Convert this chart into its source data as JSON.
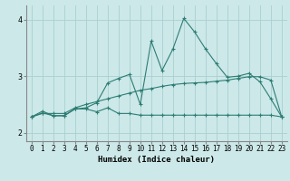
{
  "x": [
    0,
    1,
    2,
    3,
    4,
    5,
    6,
    7,
    8,
    9,
    10,
    11,
    12,
    13,
    14,
    15,
    16,
    17,
    18,
    19,
    20,
    21,
    22,
    23
  ],
  "line1": [
    2.28,
    2.35,
    2.3,
    2.3,
    2.42,
    2.42,
    2.37,
    2.44,
    2.34,
    2.34,
    2.31,
    2.31,
    2.31,
    2.31,
    2.31,
    2.31,
    2.31,
    2.31,
    2.31,
    2.31,
    2.31,
    2.31,
    2.31,
    2.28
  ],
  "line2": [
    2.28,
    2.38,
    2.3,
    2.3,
    2.42,
    2.44,
    2.53,
    2.88,
    2.96,
    3.03,
    2.5,
    3.62,
    3.1,
    3.48,
    4.02,
    3.78,
    3.48,
    3.22,
    2.98,
    3.0,
    3.05,
    2.9,
    2.6,
    2.28
  ],
  "line3": [
    2.28,
    2.34,
    2.34,
    2.34,
    2.44,
    2.5,
    2.55,
    2.6,
    2.65,
    2.7,
    2.75,
    2.78,
    2.82,
    2.85,
    2.87,
    2.88,
    2.89,
    2.91,
    2.93,
    2.96,
    2.99,
    2.99,
    2.93,
    2.28
  ],
  "color": "#2d7d74",
  "bg_color": "#cce8e8",
  "grid_color": "#aacfcf",
  "xlabel": "Humidex (Indice chaleur)",
  "ylim": [
    1.85,
    4.25
  ],
  "xlim": [
    -0.5,
    23.5
  ],
  "xticks": [
    0,
    1,
    2,
    3,
    4,
    5,
    6,
    7,
    8,
    9,
    10,
    11,
    12,
    13,
    14,
    15,
    16,
    17,
    18,
    19,
    20,
    21,
    22,
    23
  ],
  "yticks": [
    2,
    3,
    4
  ],
  "marker": "+",
  "markersize": 3.5,
  "linewidth": 0.8,
  "tick_fontsize": 5.5,
  "xlabel_fontsize": 6.5
}
